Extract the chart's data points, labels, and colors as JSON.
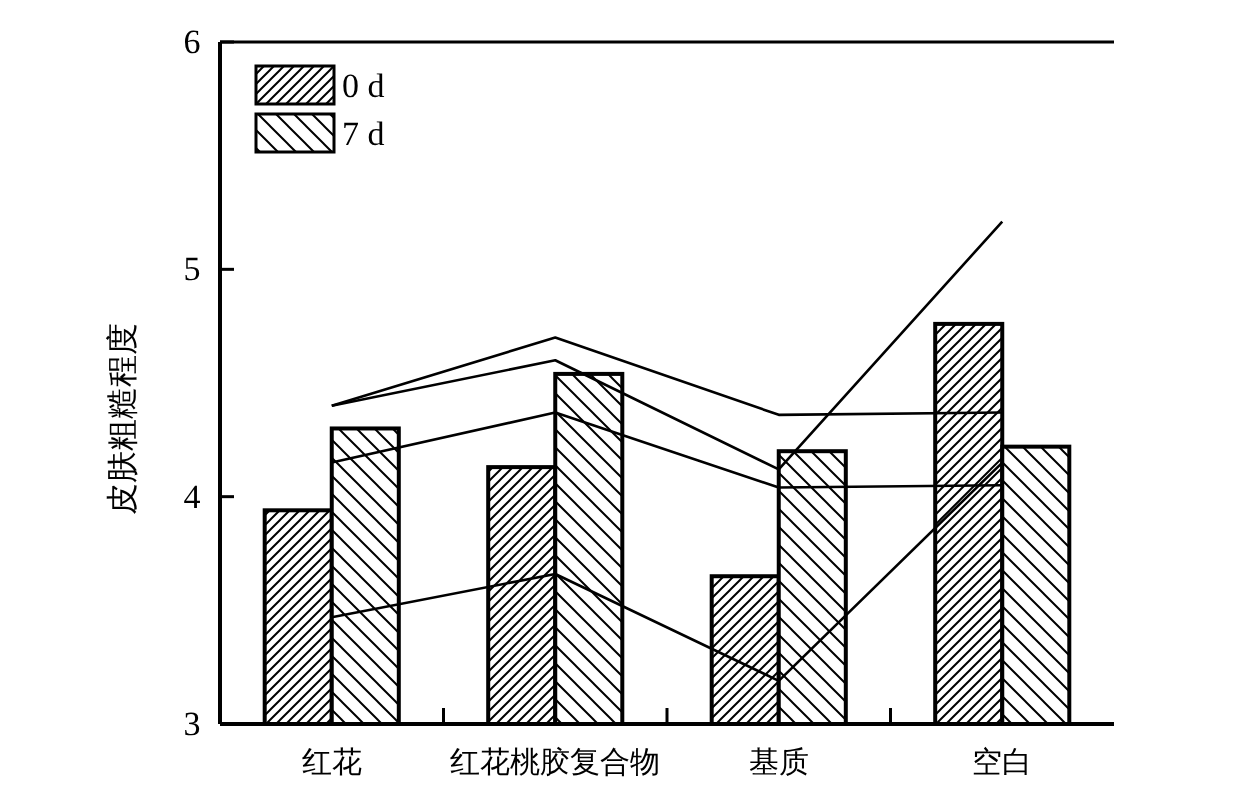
{
  "chart_data": {
    "type": "bar",
    "ylabel": "皮肤粗糙程度",
    "categories": [
      "红花",
      "红花桃胶复合物",
      "基质",
      "空白"
    ],
    "ylim": [
      3,
      6
    ],
    "yticks": [
      3,
      4,
      5,
      6
    ],
    "legend": "top left",
    "grid": false,
    "series": [
      {
        "name": "0 d",
        "color": "#000000",
        "values": [
          3.94,
          4.13,
          3.65,
          4.76
        ]
      },
      {
        "name": "7 d",
        "color": "#000000",
        "values": [
          4.3,
          4.54,
          4.2,
          4.22
        ]
      },
      {
        "type": "line",
        "color": "#000000",
        "values": [
          4.4,
          4.7,
          4.36,
          4.37
        ]
      },
      {
        "type": "line",
        "color": "#000000",
        "values": [
          4.4,
          4.6,
          4.12,
          5.21
        ]
      },
      {
        "type": "line",
        "color": "#000000",
        "values": [
          4.15,
          4.37,
          4.04,
          4.05
        ]
      },
      {
        "type": "line",
        "color": "#000000",
        "values": [
          3.47,
          3.66,
          3.19,
          4.15
        ]
      }
    ]
  }
}
